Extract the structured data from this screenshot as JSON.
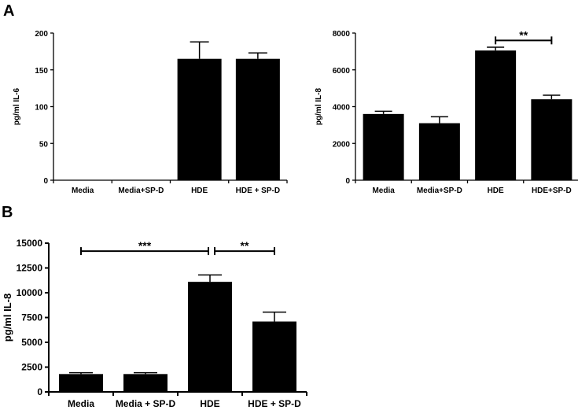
{
  "chart_data": [
    {
      "type": "bar",
      "panel": "A",
      "ylabel": "pg/ml IL-6",
      "ylim": [
        0,
        200
      ],
      "yticks": [
        0,
        50,
        100,
        150,
        200
      ],
      "categories": [
        "Media",
        "Media+SP-D",
        "HDE",
        "HDE + SP-D"
      ],
      "values": [
        0,
        0,
        165,
        165
      ],
      "errors": [
        0,
        0,
        23,
        8
      ],
      "significance": []
    },
    {
      "type": "bar",
      "panel": "",
      "ylabel": "pg/ml IL-8",
      "ylim": [
        0,
        8000
      ],
      "yticks": [
        0,
        2000,
        4000,
        6000,
        8000
      ],
      "categories": [
        "Media",
        "Media+SP-D",
        "HDE",
        "HDE+SP-D"
      ],
      "values": [
        3600,
        3100,
        7050,
        4400
      ],
      "errors": [
        150,
        350,
        180,
        220
      ],
      "significance": [
        {
          "from": 2,
          "to": 3,
          "label": "**",
          "y": 7600
        }
      ]
    },
    {
      "type": "bar",
      "panel": "B",
      "ylabel": "pg/ml IL-8",
      "ylim": [
        0,
        15000
      ],
      "yticks": [
        0,
        2500,
        5000,
        7500,
        10000,
        12500,
        15000
      ],
      "categories": [
        "Media",
        "Media + SP-D",
        "HDE",
        "HDE + SP-D"
      ],
      "values": [
        1800,
        1800,
        11100,
        7100
      ],
      "errors": [
        130,
        130,
        700,
        950
      ],
      "significance": [
        {
          "from": 0,
          "to": 2,
          "label": "***",
          "y": 14200
        },
        {
          "from": 2,
          "to": 3,
          "label": "**",
          "y": 14200
        }
      ]
    }
  ]
}
